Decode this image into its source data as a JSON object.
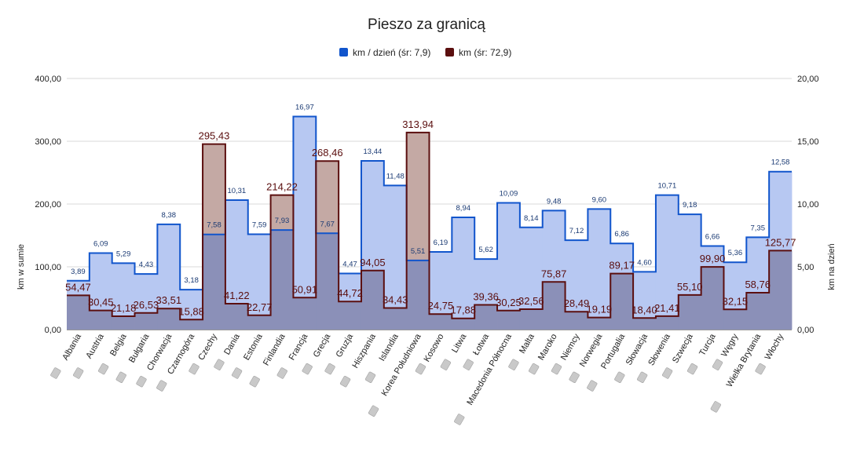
{
  "chart_data": {
    "type": "area",
    "title": "Pieszo za granicą",
    "ylabel_left": "km w sumie",
    "ylabel_right": "km na dzień",
    "ylim_left": [
      0,
      400
    ],
    "ylim_right": [
      0,
      20
    ],
    "yticks_left": [
      "0,00",
      "100,00",
      "200,00",
      "300,00",
      "400,00"
    ],
    "yticks_right": [
      "0,00",
      "5,00",
      "10,00",
      "15,00",
      "20,00"
    ],
    "categories": [
      "Albania",
      "Austria",
      "Belgia",
      "Bułgaria",
      "Chorwacja",
      "Czarnogóra",
      "Czechy",
      "Dania",
      "Estonia",
      "Finlandia",
      "Francja",
      "Grecja",
      "Gruzja",
      "Hiszpania",
      "Islandia",
      "Korea Południowa",
      "Kosowo",
      "Litwa",
      "Łotwa",
      "Macedonia Północna",
      "Malta",
      "Maroko",
      "Niemcy",
      "Norwegia",
      "Portugalia",
      "Słowacja",
      "Słowenia",
      "Szwecja",
      "Turcja",
      "Węgry",
      "Wielka Brytania",
      "Włochy"
    ],
    "series": [
      {
        "name": "km / dzień (śr: 7,9)",
        "axis": "right",
        "color": "#1155cc",
        "fill": "#b7c8f2",
        "values": [
          3.89,
          6.09,
          5.29,
          4.43,
          8.38,
          3.18,
          7.58,
          10.31,
          7.59,
          7.93,
          16.97,
          7.67,
          4.47,
          13.44,
          11.48,
          5.51,
          6.19,
          8.94,
          5.62,
          10.09,
          8.14,
          9.48,
          7.12,
          9.6,
          6.86,
          4.6,
          10.71,
          9.18,
          6.66,
          5.36,
          7.35,
          12.58
        ],
        "labels": [
          "3,89",
          "6,09",
          "5,29",
          "4,43",
          "8,38",
          "3,18",
          "7,58",
          "10,31",
          "7,59",
          "7,93",
          "16,97",
          "7,67",
          "4,47",
          "13,44",
          "11,48",
          "5,51",
          "6,19",
          "8,94",
          "5,62",
          "10,09",
          "8,14",
          "9,48",
          "7,12",
          "9,60",
          "6,86",
          "4,60",
          "10,71",
          "9,18",
          "6,66",
          "5,36",
          "7,35",
          "12,58"
        ]
      },
      {
        "name": "km (śr: 72,9)",
        "axis": "left",
        "color": "#5b0f0f",
        "fill": "#8b6a84",
        "values": [
          54.47,
          30.45,
          21.18,
          26.53,
          33.51,
          15.88,
          295.43,
          41.22,
          22.77,
          214.22,
          50.91,
          268.46,
          44.72,
          94.05,
          34.43,
          313.94,
          24.75,
          17.88,
          39.36,
          30.25,
          32.56,
          75.87,
          28.49,
          19.19,
          89.17,
          18.4,
          21.41,
          55.1,
          99.9,
          32.15,
          58.76,
          125.77
        ],
        "labels": [
          "54,47",
          "30,45",
          "21,18",
          "26,53",
          "33,51",
          "15,88",
          "295,43",
          "41,22",
          "22,77",
          "214,22",
          "50,91",
          "268,46",
          "44,72",
          "94,05",
          "34,43",
          "313,94",
          "24,75",
          "17,88",
          "39,36",
          "30,25",
          "32,56",
          "75,87",
          "28,49",
          "19,19",
          "89,17",
          "18,40",
          "21,41",
          "55,10",
          "99,90",
          "32,15",
          "58,76",
          "125,77"
        ]
      }
    ],
    "legend_position": "top-center",
    "grid": true
  },
  "colors": {
    "blue_line": "#1155cc",
    "blue_fill": "#b7c8f2",
    "red_line": "#5b0f0f",
    "overlap_fill": "#8b90b8",
    "red_only_fill": "#c4a9a4",
    "grid": "#d9d9d9"
  }
}
